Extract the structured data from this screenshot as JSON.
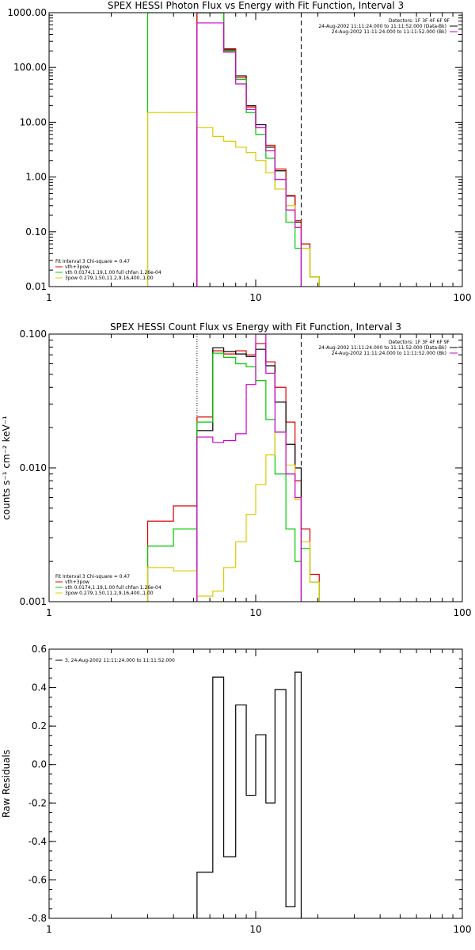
{
  "chart_data": [
    {
      "type": "line",
      "title": "SPEX HESSI Photon Flux vs Energy with Fit Function, Interval 3",
      "xlabel": "",
      "ylabel": "",
      "xscale": "log",
      "yscale": "log",
      "xlim": [
        1,
        100
      ],
      "ylim": [
        0.01,
        1000
      ],
      "x_ticks": [
        "1",
        "10",
        "100"
      ],
      "y_ticks": [
        "0.01",
        "0.10",
        "1.00",
        "10.00",
        "100.00",
        "1000.00"
      ],
      "y_tick_values": [
        0.01,
        0.1,
        1,
        10,
        100,
        1000
      ],
      "vlines": [
        {
          "x": 5.2,
          "style": "dotted",
          "color": "#cc00cc"
        },
        {
          "x": 16.6,
          "style": "dashed",
          "color": "#000000"
        }
      ],
      "info_lines": [
        "Detectors: 1F 3F 4F 6F 9F",
        "24-Aug-2002 11:11:24.000 to 11:11:52.000 (Data-Bk)",
        "24-Aug-2002 11:11:24.000 to 11:11:52.000 (Bk)"
      ],
      "info_colors": [
        "",
        "#000000",
        "#cc00cc"
      ],
      "legend": [
        {
          "text": "Fit Interval 3   Chi-square = 0.47",
          "color": ""
        },
        {
          "text": "vth+3pow",
          "color": "#dd0000"
        },
        {
          "text": "vth 0.0174,1.19,1.00  full chfan 1.26e-04",
          "color": "#00cc00"
        },
        {
          "text": "3pow 0.279,1.50,11.2,9.16,400.,1.00",
          "color": "#ddcc00"
        }
      ],
      "bin_edges": [
        3.0,
        4.0,
        5.2,
        6.2,
        7.0,
        8.0,
        9.0,
        10.0,
        11.2,
        12.4,
        14.0,
        15.5,
        16.6,
        18.3,
        20.3
      ],
      "series": [
        {
          "color": "#000000",
          "values": [
            null,
            null,
            1000,
            1000,
            210,
            70,
            20,
            9,
            3.5,
            1.3,
            0.45,
            0.15,
            null,
            null
          ]
        },
        {
          "color": "#dd0000",
          "values": [
            null,
            null,
            1000,
            1000,
            220,
            65,
            19,
            8,
            3.8,
            1.4,
            0.46,
            0.16,
            0.06,
            0.015
          ]
        },
        {
          "color": "#00cc00",
          "values": [
            1000,
            1000,
            1000,
            1000,
            200,
            60,
            15,
            6,
            2.2,
            0.6,
            0.15,
            0.05,
            0.05,
            0.015
          ]
        },
        {
          "color": "#ddcc00",
          "values": [
            15,
            15,
            8,
            5.5,
            4.5,
            3.5,
            2.8,
            2.0,
            1.2,
            0.6,
            0.3,
            0.12,
            0.05,
            0.015
          ]
        },
        {
          "color": "#cc00cc",
          "values": [
            null,
            null,
            650,
            650,
            190,
            50,
            17,
            8,
            3.0,
            0.9,
            0.25,
            0.12,
            null,
            null
          ]
        }
      ]
    },
    {
      "type": "line",
      "title": "SPEX HESSI Count Flux vs Energy with Fit Function, Interval 3",
      "xlabel": "",
      "ylabel": "counts s⁻¹ cm⁻² keV⁻¹",
      "xscale": "log",
      "yscale": "log",
      "xlim": [
        1,
        100
      ],
      "ylim": [
        0.001,
        0.1
      ],
      "x_ticks": [
        "1",
        "10",
        "100"
      ],
      "y_ticks": [
        "0.001",
        "0.010",
        "0.100"
      ],
      "y_tick_values": [
        0.001,
        0.01,
        0.1
      ],
      "vlines": [
        {
          "x": 5.2,
          "style": "dotted",
          "color": "#000000"
        },
        {
          "x": 16.6,
          "style": "dashed",
          "color": "#000000"
        }
      ],
      "info_lines": [
        "Detectors: 1F 3F 4F 6F 9F",
        "24-Aug-2002 11:11:24.000 to 11:11:52.000 (Data-Bk)",
        "24-Aug-2002 11:11:24.000 to 11:11:52.000 (Bk)"
      ],
      "info_colors": [
        "",
        "#000000",
        "#cc00cc"
      ],
      "legend": [
        {
          "text": "Fit Interval 3   Chi-square = 0.47",
          "color": ""
        },
        {
          "text": "vth+3pow",
          "color": "#dd0000"
        },
        {
          "text": "vth 0.0174,1.19,1.00  full chfan 1.26e-04",
          "color": "#00cc00"
        },
        {
          "text": "3pow 0.279,1.50,11.2,9.16,400.,1.00",
          "color": "#ddcc00"
        }
      ],
      "bin_edges": [
        3.0,
        4.0,
        5.2,
        6.2,
        7.0,
        8.0,
        9.0,
        10.0,
        11.2,
        12.4,
        14.0,
        15.5,
        16.6,
        18.3,
        20.3
      ],
      "series": [
        {
          "color": "#dd0000",
          "values": [
            0.004,
            0.0052,
            0.024,
            0.075,
            0.071,
            0.075,
            0.07,
            0.085,
            0.062,
            0.04,
            0.022,
            0.008,
            0.0035,
            0.0016
          ]
        },
        {
          "color": "#000000",
          "values": [
            null,
            null,
            0.019,
            0.079,
            0.074,
            0.071,
            0.068,
            0.077,
            0.058,
            0.031,
            0.015,
            0.01,
            null,
            null
          ]
        },
        {
          "color": "#00cc00",
          "values": [
            0.0026,
            0.0035,
            0.022,
            0.072,
            0.067,
            0.06,
            0.057,
            0.045,
            0.023,
            0.009,
            0.0035,
            0.002,
            0.0025,
            0.0014
          ]
        },
        {
          "color": "#ddcc00",
          "values": [
            0.0018,
            0.0017,
            0.0011,
            0.0012,
            0.0018,
            0.0028,
            0.0045,
            0.0075,
            0.0125,
            0.0185,
            0.0105,
            0.0058,
            0.0028,
            0.0014
          ]
        },
        {
          "color": "#cc00cc",
          "values": [
            null,
            null,
            0.017,
            0.0155,
            0.016,
            0.018,
            0.042,
            0.1,
            0.051,
            0.0185,
            0.009,
            0.006,
            null,
            null
          ]
        }
      ]
    },
    {
      "type": "line",
      "title": "",
      "xlabel": "",
      "ylabel": "Raw Residuals",
      "xscale": "log",
      "yscale": "linear",
      "xlim": [
        1,
        100
      ],
      "ylim": [
        -0.8,
        0.6
      ],
      "x_ticks": [
        "1",
        "10",
        "100"
      ],
      "y_ticks": [
        "-0.8",
        "-0.6",
        "-0.4",
        "-0.2",
        "0.0",
        "0.2",
        "0.4",
        "0.6"
      ],
      "y_tick_values": [
        -0.8,
        -0.6,
        -0.4,
        -0.2,
        0.0,
        0.2,
        0.4,
        0.6
      ],
      "legend": [
        {
          "text": "3, 24-Aug-2002 11:11:24.000 to 11:11:52.000",
          "color": "#000000"
        }
      ],
      "bin_edges": [
        5.2,
        6.2,
        7.0,
        8.0,
        9.0,
        10.0,
        11.2,
        12.4,
        14.0,
        15.5,
        16.6
      ],
      "series": [
        {
          "color": "#000000",
          "values": [
            -0.56,
            0.455,
            -0.48,
            0.31,
            -0.16,
            0.155,
            -0.2,
            0.39,
            -0.74,
            0.48
          ]
        }
      ]
    }
  ]
}
